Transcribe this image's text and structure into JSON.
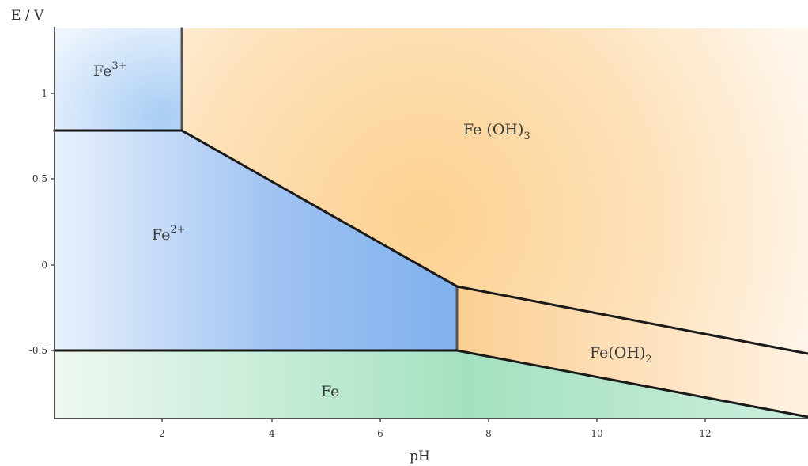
{
  "chart_data": {
    "type": "diagram",
    "x_axis": {
      "label": "pH",
      "ticks": [
        "2",
        "4",
        "6",
        "8",
        "10",
        "12"
      ]
    },
    "y_axis": {
      "label": "E / V",
      "ticks": [
        "1",
        "0.5",
        "0",
        "-0.5"
      ]
    },
    "regions": [
      {
        "name": "Fe3+",
        "label": "Fe",
        "superscript": "3+",
        "subscript": "",
        "color": "#a9cdf4"
      },
      {
        "name": "Fe2+",
        "label": "Fe",
        "superscript": "2+",
        "subscript": "",
        "color": "#7fb1ee"
      },
      {
        "name": "Fe(OH)3",
        "label": "Fe (OH)",
        "superscript": "",
        "subscript": "3",
        "color": "#fdd596"
      },
      {
        "name": "Fe(OH)2",
        "label": "Fe(OH)",
        "superscript": "",
        "subscript": "2",
        "color": "#fbcf93"
      },
      {
        "name": "Fe",
        "label": "Fe",
        "superscript": "",
        "subscript": "",
        "color": "#a8e5c3"
      }
    ],
    "boundaries": [
      {
        "from": "Fe3+",
        "to": "Fe2+",
        "points": [
          [
            0,
            0.77
          ],
          [
            2.3,
            0.77
          ]
        ]
      },
      {
        "from": "Fe3+",
        "to": "Fe(OH)3",
        "points": [
          [
            2.3,
            1.3
          ],
          [
            2.3,
            0.77
          ]
        ]
      },
      {
        "from": "Fe2+",
        "to": "Fe(OH)3",
        "points": [
          [
            2.3,
            0.77
          ],
          [
            7.5,
            -0.12
          ]
        ]
      },
      {
        "from": "Fe2+",
        "to": "Fe(OH)2",
        "points": [
          [
            7.5,
            -0.12
          ],
          [
            7.5,
            -0.44
          ]
        ]
      },
      {
        "from": "Fe(OH)3",
        "to": "Fe(OH)2",
        "points": [
          [
            7.5,
            -0.12
          ],
          [
            14,
            -0.44
          ]
        ]
      },
      {
        "from": "Fe2+",
        "to": "Fe",
        "points": [
          [
            0,
            -0.44
          ],
          [
            7.5,
            -0.44
          ]
        ]
      },
      {
        "from": "Fe(OH)2",
        "to": "Fe",
        "points": [
          [
            7.5,
            -0.44
          ],
          [
            14,
            -0.86
          ]
        ]
      }
    ]
  }
}
